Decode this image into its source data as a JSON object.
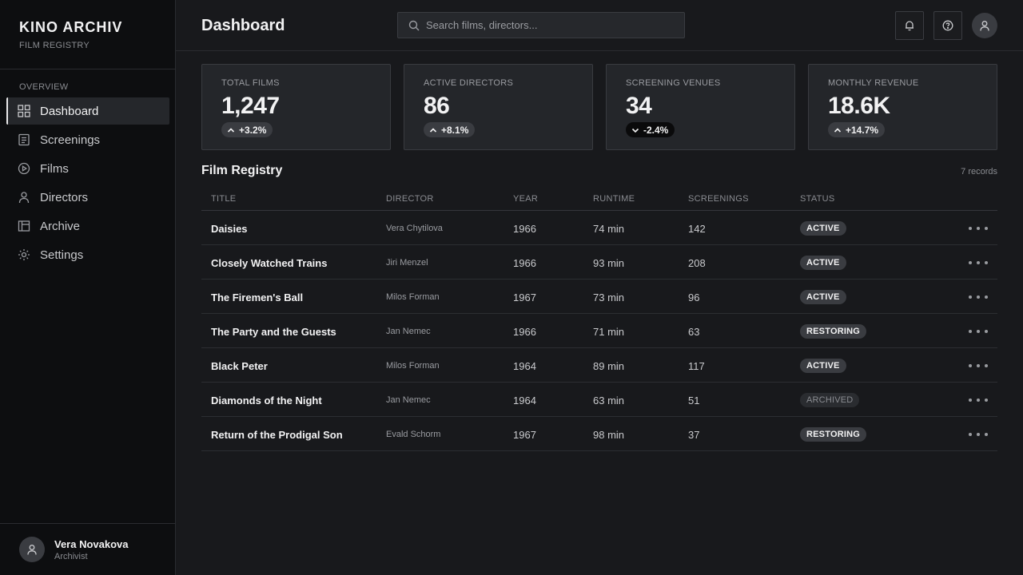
{
  "brand": {
    "title": "KINO ARCHIV",
    "subtitle": "FILM REGISTRY"
  },
  "sidebar": {
    "section": "OVERVIEW",
    "items": [
      {
        "label": "Dashboard",
        "icon": "grid-icon",
        "active": true
      },
      {
        "label": "Screenings",
        "icon": "document-icon"
      },
      {
        "label": "Films",
        "icon": "play-circle-icon"
      },
      {
        "label": "Directors",
        "icon": "person-icon"
      },
      {
        "label": "Archive",
        "icon": "archive-icon"
      },
      {
        "label": "Settings",
        "icon": "gear-icon"
      }
    ],
    "user": {
      "name": "Vera Novakova",
      "role": "Archivist"
    }
  },
  "header": {
    "title": "Dashboard",
    "search_placeholder": "Search films, directors..."
  },
  "stats": [
    {
      "label": "TOTAL FILMS",
      "value": "1,247",
      "delta": "+3.2%",
      "trend": "up"
    },
    {
      "label": "ACTIVE DIRECTORS",
      "value": "86",
      "delta": "+8.1%",
      "trend": "up"
    },
    {
      "label": "SCREENING VENUES",
      "value": "34",
      "delta": "-2.4%",
      "trend": "down"
    },
    {
      "label": "MONTHLY REVENUE",
      "value": "18.6K",
      "delta": "+14.7%",
      "trend": "up"
    }
  ],
  "registry": {
    "title": "Film Registry",
    "count": "7 records",
    "columns": [
      "TITLE",
      "DIRECTOR",
      "YEAR",
      "RUNTIME",
      "SCREENINGS",
      "STATUS"
    ],
    "rows": [
      {
        "title": "Daisies",
        "director": "Vera Chytilova",
        "year": "1966",
        "runtime": "74 min",
        "screenings": "142",
        "status": "ACTIVE"
      },
      {
        "title": "Closely Watched Trains",
        "director": "Jiri Menzel",
        "year": "1966",
        "runtime": "93 min",
        "screenings": "208",
        "status": "ACTIVE"
      },
      {
        "title": "The Firemen's Ball",
        "director": "Milos Forman",
        "year": "1967",
        "runtime": "73 min",
        "screenings": "96",
        "status": "ACTIVE"
      },
      {
        "title": "The Party and the Guests",
        "director": "Jan Nemec",
        "year": "1966",
        "runtime": "71 min",
        "screenings": "63",
        "status": "RESTORING"
      },
      {
        "title": "Black Peter",
        "director": "Milos Forman",
        "year": "1964",
        "runtime": "89 min",
        "screenings": "117",
        "status": "ACTIVE"
      },
      {
        "title": "Diamonds of the Night",
        "director": "Jan Nemec",
        "year": "1964",
        "runtime": "63 min",
        "screenings": "51",
        "status": "ARCHIVED"
      },
      {
        "title": "Return of the Prodigal Son",
        "director": "Evald Schorm",
        "year": "1967",
        "runtime": "98 min",
        "screenings": "37",
        "status": "RESTORING"
      }
    ]
  }
}
